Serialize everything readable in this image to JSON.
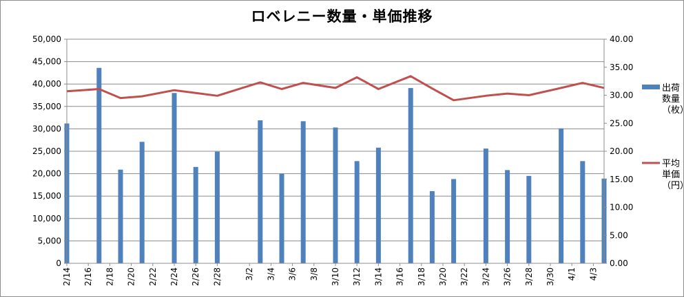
{
  "chart_data": {
    "type": "bar+line",
    "title": "ロベレニー数量・単価推移",
    "categories": [
      "2/14",
      "2/15",
      "2/16",
      "2/17",
      "2/18",
      "2/19",
      "2/20",
      "2/21",
      "2/22",
      "2/23",
      "2/24",
      "2/25",
      "2/26",
      "2/27",
      "2/28",
      "2/29",
      "3/1",
      "3/2",
      "3/3",
      "3/4",
      "3/5",
      "3/6",
      "3/7",
      "3/8",
      "3/9",
      "3/10",
      "3/11",
      "3/12",
      "3/13",
      "3/14",
      "3/15",
      "3/16",
      "3/17",
      "3/18",
      "3/19",
      "3/20",
      "3/21",
      "3/22",
      "3/23",
      "3/24",
      "3/25",
      "3/26",
      "3/27",
      "3/28",
      "3/29",
      "3/30",
      "3/31",
      "4/1",
      "4/2",
      "4/3",
      "4/4"
    ],
    "tick_labels": [
      "2/14",
      "2/16",
      "2/18",
      "2/20",
      "2/22",
      "2/24",
      "2/26",
      "2/28",
      "3/2",
      "3/4",
      "3/6",
      "3/8",
      "3/10",
      "3/12",
      "3/14",
      "3/16",
      "3/18",
      "3/20",
      "3/22",
      "3/24",
      "3/26",
      "3/28",
      "3/30",
      "4/1",
      "4/3"
    ],
    "series": [
      {
        "name": "出荷数量（枚）",
        "type": "bar",
        "axis": "left",
        "color": "#4f81bd",
        "points": [
          {
            "x": "2/14",
            "y": 31200
          },
          {
            "x": "2/17",
            "y": 43600
          },
          {
            "x": "2/19",
            "y": 20900
          },
          {
            "x": "2/21",
            "y": 27100
          },
          {
            "x": "2/24",
            "y": 38000
          },
          {
            "x": "2/26",
            "y": 21500
          },
          {
            "x": "2/28",
            "y": 24900
          },
          {
            "x": "3/3",
            "y": 31900
          },
          {
            "x": "3/5",
            "y": 20000
          },
          {
            "x": "3/7",
            "y": 31700
          },
          {
            "x": "3/10",
            "y": 30300
          },
          {
            "x": "3/12",
            "y": 22800
          },
          {
            "x": "3/14",
            "y": 25800
          },
          {
            "x": "3/17",
            "y": 39100
          },
          {
            "x": "3/19",
            "y": 16100
          },
          {
            "x": "3/21",
            "y": 18800
          },
          {
            "x": "3/24",
            "y": 25600
          },
          {
            "x": "3/26",
            "y": 20800
          },
          {
            "x": "3/28",
            "y": 19500
          },
          {
            "x": "3/31",
            "y": 30100
          },
          {
            "x": "4/2",
            "y": 22800
          },
          {
            "x": "4/4",
            "y": 18900
          }
        ]
      },
      {
        "name": "平均単価（円）",
        "type": "line",
        "axis": "right",
        "color": "#c0504d",
        "points": [
          {
            "x": "2/14",
            "y": 30.7
          },
          {
            "x": "2/17",
            "y": 31.1
          },
          {
            "x": "2/19",
            "y": 29.5
          },
          {
            "x": "2/21",
            "y": 29.8
          },
          {
            "x": "2/24",
            "y": 30.9
          },
          {
            "x": "2/26",
            "y": 30.4
          },
          {
            "x": "2/28",
            "y": 29.9
          },
          {
            "x": "3/3",
            "y": 32.3
          },
          {
            "x": "3/5",
            "y": 31.1
          },
          {
            "x": "3/7",
            "y": 32.2
          },
          {
            "x": "3/10",
            "y": 31.3
          },
          {
            "x": "3/12",
            "y": 33.2
          },
          {
            "x": "3/14",
            "y": 31.1
          },
          {
            "x": "3/17",
            "y": 33.4
          },
          {
            "x": "3/19",
            "y": 31.2
          },
          {
            "x": "3/21",
            "y": 29.1
          },
          {
            "x": "3/24",
            "y": 29.9
          },
          {
            "x": "3/26",
            "y": 30.3
          },
          {
            "x": "3/28",
            "y": 30.0
          },
          {
            "x": "3/31",
            "y": 31.3
          },
          {
            "x": "4/2",
            "y": 32.2
          },
          {
            "x": "4/4",
            "y": 31.3
          }
        ]
      }
    ],
    "y_left": {
      "min": 0,
      "max": 50000,
      "step": 5000,
      "tick_labels": [
        "0",
        "5,000",
        "10,000",
        "15,000",
        "20,000",
        "25,000",
        "30,000",
        "35,000",
        "40,000",
        "45,000",
        "50,000"
      ]
    },
    "y_right": {
      "min": 0,
      "max": 40,
      "step": 5,
      "tick_labels": [
        "0.00",
        "5.00",
        "10.00",
        "15.00",
        "20.00",
        "25.00",
        "30.00",
        "35.00",
        "40.00"
      ]
    },
    "grid": true,
    "legend_position": "right",
    "legend": [
      {
        "lines": [
          "出荷",
          "数量",
          "（枚）"
        ],
        "color": "#4f81bd",
        "kind": "bar"
      },
      {
        "lines": [
          "平均",
          "単価",
          "（円）"
        ],
        "color": "#c0504d",
        "kind": "line"
      }
    ]
  }
}
